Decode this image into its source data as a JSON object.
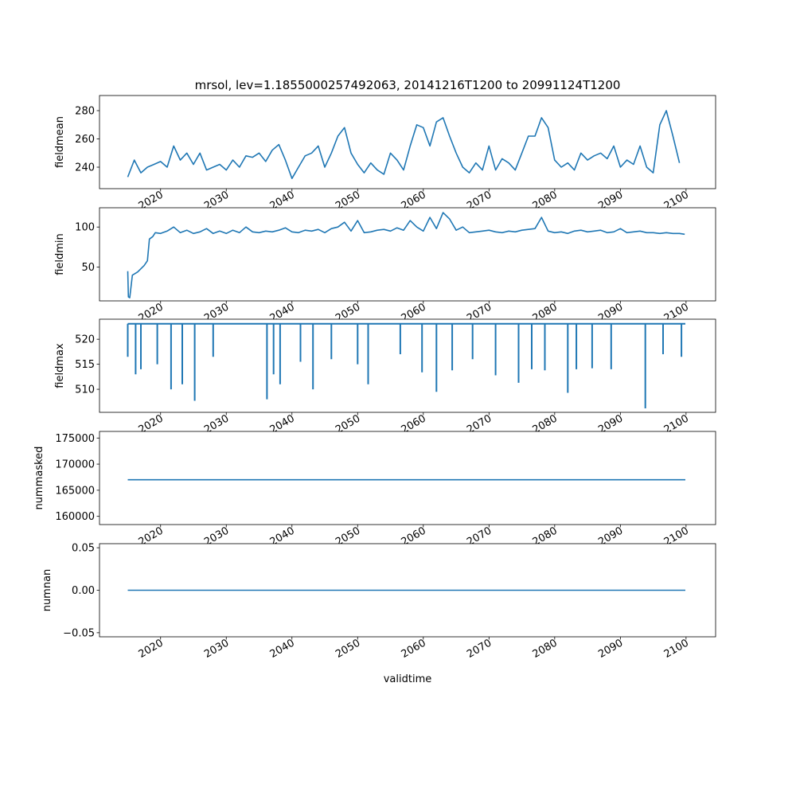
{
  "chart_data": {
    "type": "line",
    "title": "mrsol, lev=1.1855000257492063, 20141216T1200 to 20991124T1200",
    "xlabel": "validtime",
    "xlim": [
      2010.7,
      2104.5
    ],
    "xticks": [
      2020,
      2030,
      2040,
      2050,
      2060,
      2070,
      2080,
      2090,
      2100
    ],
    "line_color": "#1f77b4",
    "panels": [
      {
        "ylabel": "fieldmean",
        "ylim": [
          224.8,
          290.7
        ],
        "yticks": [
          240,
          260,
          280
        ],
        "ytick_labels": [
          "240",
          "260",
          "280"
        ],
        "x": [
          2015,
          2016,
          2017,
          2018,
          2019,
          2020,
          2021,
          2022,
          2023,
          2024,
          2025,
          2026,
          2027,
          2028,
          2029,
          2030,
          2031,
          2032,
          2033,
          2034,
          2035,
          2036,
          2037,
          2038,
          2039,
          2040,
          2041,
          2042,
          2043,
          2044,
          2045,
          2046,
          2047,
          2048,
          2049,
          2050,
          2051,
          2052,
          2053,
          2054,
          2055,
          2056,
          2057,
          2058,
          2059,
          2060,
          2061,
          2062,
          2063,
          2064,
          2065,
          2066,
          2067,
          2068,
          2069,
          2070,
          2071,
          2072,
          2073,
          2074,
          2075,
          2076,
          2077,
          2078,
          2079,
          2080,
          2081,
          2082,
          2083,
          2084,
          2085,
          2086,
          2087,
          2088,
          2089,
          2090,
          2091,
          2092,
          2093,
          2094,
          2095,
          2096,
          2097,
          2098,
          2099
        ],
        "y": [
          233,
          245,
          236,
          240,
          242,
          244,
          240,
          255,
          245,
          250,
          242,
          250,
          238,
          240,
          242,
          238,
          245,
          240,
          248,
          247,
          250,
          244,
          252,
          256,
          245,
          232,
          240,
          248,
          250,
          255,
          240,
          250,
          262,
          268,
          250,
          242,
          236,
          243,
          238,
          235,
          250,
          245,
          238,
          255,
          270,
          268,
          255,
          272,
          275,
          262,
          250,
          240,
          236,
          243,
          238,
          255,
          238,
          246,
          243,
          238,
          250,
          262,
          262,
          275,
          268,
          245,
          240,
          243,
          238,
          250,
          245,
          248,
          250,
          246,
          255,
          240,
          245,
          242,
          255,
          240,
          236,
          270,
          280,
          262,
          243
        ]
      },
      {
        "ylabel": "fieldmin",
        "ylim": [
          8,
          124
        ],
        "yticks": [
          50,
          100
        ],
        "ytick_labels": [
          "50",
          "100"
        ],
        "x": [
          2015.0,
          2015.1,
          2015.3,
          2015.7,
          2016.5,
          2017.5,
          2018.0,
          2018.3,
          2018.8,
          2019.2,
          2020,
          2021,
          2022,
          2023,
          2024,
          2025,
          2026,
          2027,
          2028,
          2029,
          2030,
          2031,
          2032,
          2033,
          2034,
          2035,
          2036,
          2037,
          2038,
          2039,
          2040,
          2041,
          2042,
          2043,
          2044,
          2045,
          2046,
          2047,
          2048,
          2049,
          2050,
          2051,
          2052,
          2053,
          2054,
          2055,
          2056,
          2057,
          2058,
          2059,
          2060,
          2061,
          2062,
          2063,
          2064,
          2065,
          2066,
          2067,
          2068,
          2069,
          2070,
          2071,
          2072,
          2073,
          2074,
          2075,
          2076,
          2077,
          2078,
          2079,
          2080,
          2081,
          2082,
          2083,
          2084,
          2085,
          2086,
          2087,
          2088,
          2089,
          2090,
          2091,
          2092,
          2093,
          2094,
          2095,
          2096,
          2097,
          2098,
          2099,
          2099.8
        ],
        "y": [
          45,
          13,
          12,
          40,
          44,
          52,
          58,
          85,
          88,
          93,
          92,
          95,
          100,
          93,
          96,
          92,
          94,
          98,
          92,
          95,
          92,
          96,
          93,
          100,
          94,
          93,
          95,
          94,
          96,
          99,
          94,
          93,
          96,
          95,
          97,
          93,
          98,
          100,
          106,
          95,
          108,
          93,
          94,
          96,
          97,
          95,
          99,
          96,
          108,
          100,
          95,
          112,
          98,
          118,
          110,
          96,
          100,
          93,
          94,
          95,
          96,
          94,
          93,
          95,
          94,
          96,
          97,
          98,
          112,
          95,
          93,
          94,
          92,
          95,
          96,
          94,
          95,
          96,
          93,
          94,
          98,
          93,
          94,
          95,
          93,
          93,
          92,
          93,
          92,
          92,
          91
        ],
        "style": "line"
      },
      {
        "ylabel": "fieldmax",
        "ylim": [
          505.4,
          524
        ],
        "yticks": [
          510,
          515,
          520
        ],
        "ytick_labels": [
          "510",
          "515",
          "520"
        ],
        "baseline": 523.1,
        "x": [
          2015.0,
          2016.2,
          2017.0,
          2019.5,
          2021.6,
          2023.3,
          2025.2,
          2028.0,
          2036.2,
          2037.2,
          2038.2,
          2041.3,
          2043.2,
          2046.0,
          2050.0,
          2051.6,
          2056.5,
          2059.8,
          2062.0,
          2064.4,
          2067.5,
          2071.0,
          2074.5,
          2076.5,
          2078.5,
          2082.0,
          2083.3,
          2085.7,
          2088.6,
          2093.8,
          2096.5,
          2099.3
        ],
        "y": [
          516.5,
          513,
          514,
          515,
          510,
          511,
          507.7,
          516.5,
          508,
          513,
          511,
          515.5,
          510,
          516,
          515,
          511,
          517,
          513.4,
          509.5,
          513.8,
          516,
          512.8,
          511.3,
          514,
          513.8,
          509.3,
          514,
          514.2,
          514,
          506.2,
          517,
          516.5
        ],
        "style": "spikes"
      },
      {
        "ylabel": "nummasked",
        "ylim": [
          158421,
          176263
        ],
        "yticks": [
          160000,
          165000,
          170000,
          175000
        ],
        "ytick_labels": [
          "160000",
          "165000",
          "170000",
          "175000"
        ],
        "x": [
          2015.0,
          2099.9
        ],
        "y": [
          167000,
          167000
        ]
      },
      {
        "ylabel": "numnan",
        "ylim": [
          -0.0548,
          0.0548
        ],
        "yticks": [
          -0.05,
          0,
          0.05
        ],
        "ytick_labels": [
          "−0.05",
          "0.00",
          "0.05"
        ],
        "x": [
          2015.0,
          2099.9
        ],
        "y": [
          0,
          0
        ]
      }
    ]
  }
}
